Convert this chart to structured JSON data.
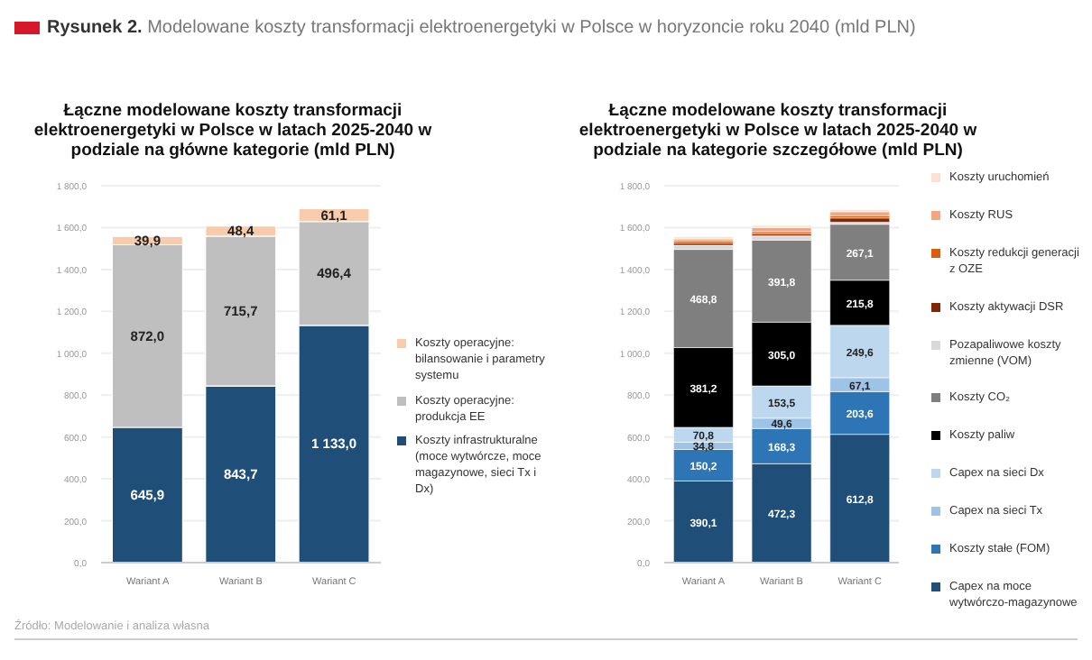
{
  "chart_data": [
    {
      "type": "bar",
      "stacked": true,
      "title": "Łączne modelowane koszty transformacji elektroenergetyki w Polsce w latach 2025-2040 w podziale na główne kategorie (mld PLN)",
      "annotations": [
        "Rysunek 2. Modelowane koszty transformacji elektroenergetyki w Polsce w horyzoncie roku 2040 (mld PLN)",
        "Źródło: Modelowanie i analiza własna"
      ],
      "categories": [
        "Wariant A",
        "Wariant B",
        "Wariant C"
      ],
      "series": [
        {
          "name": "Koszty infrastrukturalne (moce wytwórcze, moce magazynowe, sieci Tx i Dx)",
          "color": "#1f4e79",
          "values": [
            645.9,
            843.7,
            1133.0
          ],
          "value_labels": [
            "645,9",
            "843,7",
            "1 133,0"
          ]
        },
        {
          "name": "Koszty operacyjne: produkcja EE",
          "color": "#bfbfbf",
          "values": [
            872.0,
            715.7,
            496.4
          ],
          "value_labels": [
            "872,0",
            "715,7",
            "496,4"
          ]
        },
        {
          "name": "Koszty operacyjne: bilansowanie i parametry systemu",
          "color": "#f8cbad",
          "values": [
            39.9,
            48.4,
            61.1
          ],
          "value_labels": [
            "39,9",
            "48,4",
            "61,1"
          ]
        }
      ],
      "ylim": [
        0,
        1800
      ],
      "yticks": [
        {
          "value": 0,
          "label": "0,0"
        },
        {
          "value": 200,
          "label": "200,0"
        },
        {
          "value": 400,
          "label": "400,0"
        },
        {
          "value": 600,
          "label": "600,0"
        },
        {
          "value": 800,
          "label": "800,0"
        },
        {
          "value": 1000,
          "label": "1 000,0"
        },
        {
          "value": 1200,
          "label": "1 200,0"
        },
        {
          "value": 1400,
          "label": "1 400,0"
        },
        {
          "value": 1600,
          "label": "1 600,0"
        },
        {
          "value": 1800,
          "label": "1 800,0"
        }
      ],
      "grid": "y",
      "legend": "right"
    },
    {
      "type": "bar",
      "stacked": true,
      "title": "Łączne modelowane koszty transformacji elektroenergetyki w Polsce w latach 2025-2040 w podziale na kategorie szczegółowe (mld PLN)",
      "categories": [
        "Wariant A",
        "Wariant B",
        "Wariant C"
      ],
      "series": [
        {
          "name": "Capex na moce wytwórczo-magazynowe",
          "color": "#1f4e79",
          "values": [
            390.1,
            472.3,
            612.8
          ],
          "value_labels": [
            "390,1",
            "472,3",
            "612,8"
          ]
        },
        {
          "name": "Koszty stałe (FOM)",
          "color": "#2e75b6",
          "values": [
            150.2,
            168.3,
            203.6
          ],
          "value_labels": [
            "150,2",
            "168,3",
            "203,6"
          ]
        },
        {
          "name": "Capex na sieci Tx",
          "color": "#9dc3e6",
          "values": [
            34.8,
            49.6,
            67.1
          ],
          "value_labels": [
            "34,8",
            "49,6",
            "67,1"
          ]
        },
        {
          "name": "Capex na sieci Dx",
          "color": "#bdd7ee",
          "values": [
            70.8,
            153.5,
            249.6
          ],
          "value_labels": [
            "70,8",
            "153,5",
            "249,6"
          ]
        },
        {
          "name": "Koszty paliw",
          "color": "#000000",
          "values": [
            381.2,
            305.0,
            215.8
          ],
          "value_labels": [
            "381,2",
            "305,0",
            "215,8"
          ]
        },
        {
          "name": "Koszty CO₂",
          "color": "#7f7f7f",
          "values": [
            468.8,
            391.8,
            267.1
          ],
          "value_labels": [
            "468,8",
            "391,8",
            "267,1"
          ]
        },
        {
          "name": "Pozapaliwowe koszty zmienne (VOM)",
          "color": "#d9d9d9",
          "values": [
            20,
            20,
            10
          ],
          "value_labels": [
            null,
            null,
            null
          ]
        },
        {
          "name": "Koszty aktywacji DSR",
          "color": "#7f2704",
          "values": [
            10,
            10,
            20
          ],
          "value_labels": [
            null,
            null,
            null
          ]
        },
        {
          "name": "Koszty redukcji generacji z OZE",
          "color": "#d95f0e",
          "values": [
            10,
            10,
            10
          ],
          "value_labels": [
            null,
            null,
            null
          ]
        },
        {
          "name": "Koszty RUS",
          "color": "#f4a582",
          "values": [
            10,
            20,
            20
          ],
          "value_labels": [
            null,
            null,
            null
          ]
        },
        {
          "name": "Koszty uruchomień",
          "color": "#fde0d0",
          "values": [
            10,
            10,
            10
          ],
          "value_labels": [
            null,
            null,
            null
          ]
        }
      ],
      "ylim": [
        0,
        1800
      ],
      "yticks": [
        {
          "value": 0,
          "label": "0,0"
        },
        {
          "value": 200,
          "label": "200,0"
        },
        {
          "value": 400,
          "label": "400,0"
        },
        {
          "value": 600,
          "label": "600,0"
        },
        {
          "value": 800,
          "label": "800,0"
        },
        {
          "value": 1000,
          "label": "1 000,0"
        },
        {
          "value": 1200,
          "label": "1 200,0"
        },
        {
          "value": 1400,
          "label": "1 400,0"
        },
        {
          "value": 1600,
          "label": "1 600,0"
        },
        {
          "value": 1800,
          "label": "1 800,0"
        }
      ],
      "grid": "y",
      "legend": "right"
    }
  ]
}
